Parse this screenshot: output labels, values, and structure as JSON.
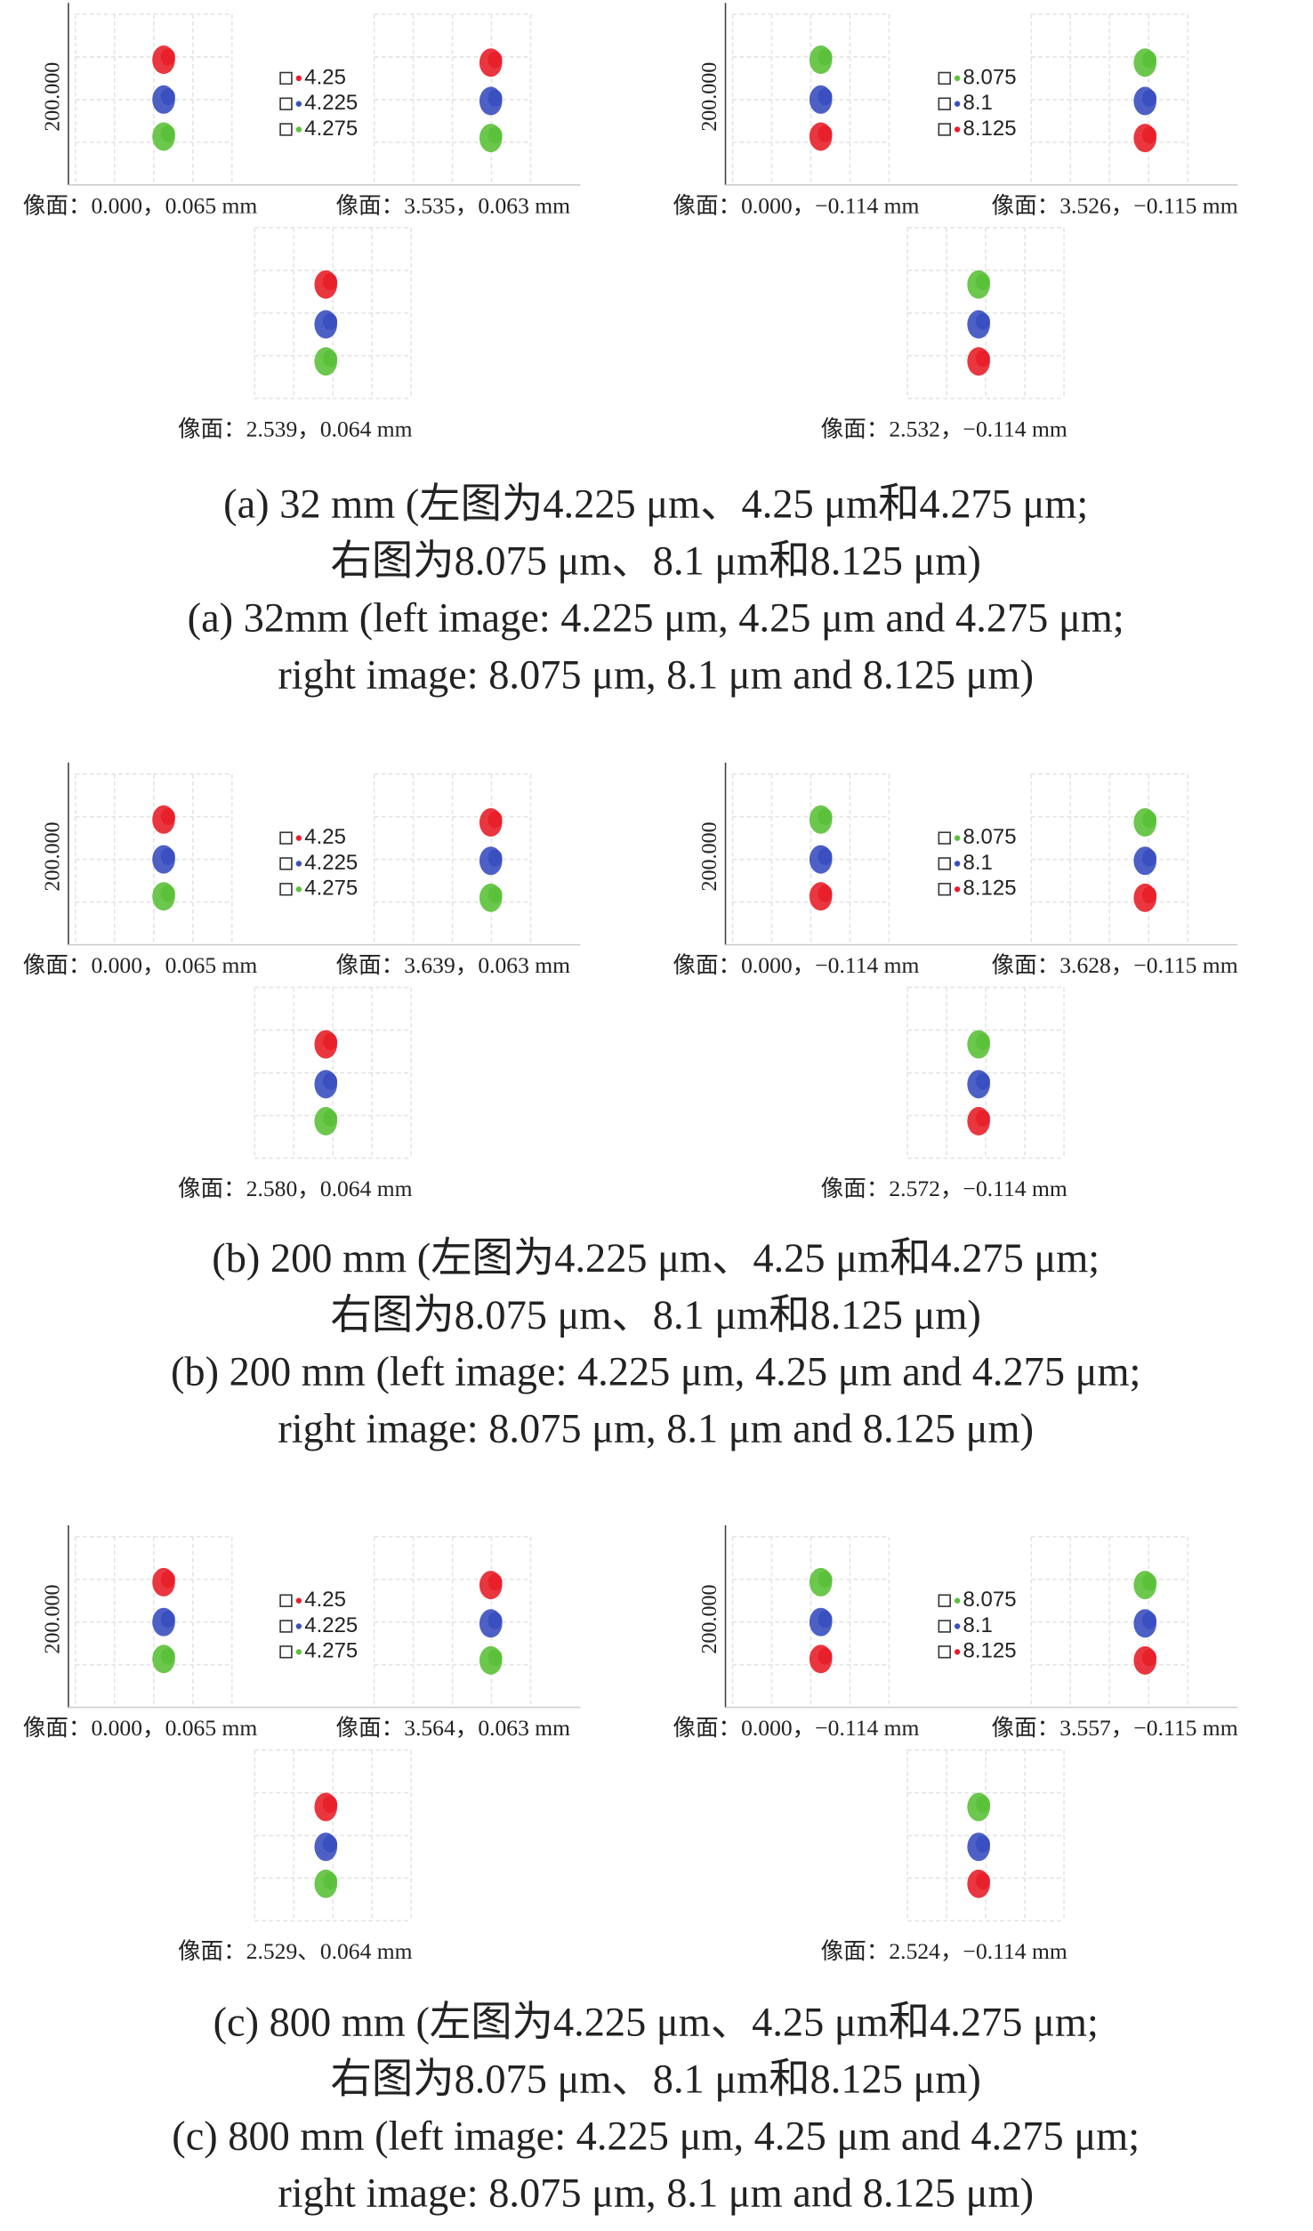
{
  "panels": [
    {
      "left": {
        "axis_label": "200.000",
        "legend": [
          "4.25",
          "4.225",
          "4.275"
        ],
        "fields": [
          "像面：0.000，0.065 mm",
          "像面：3.535，0.063 mm",
          "像面：2.539，0.064 mm"
        ]
      },
      "right": {
        "axis_label": "200.000",
        "legend": [
          "8.075",
          "8.1",
          "8.125"
        ],
        "fields": [
          "像面：0.000，−0.114 mm",
          "像面：3.526，−0.115 mm",
          "像面：2.532，−0.114 mm"
        ]
      },
      "caption_zh": [
        "(a) 32 mm (左图为4.225 μm、4.25 μm和4.275 μm;",
        "右图为8.075 μm、8.1 μm和8.125 μm)"
      ],
      "caption_en": [
        "(a) 32mm (left image: 4.225 μm, 4.25 μm and 4.275 μm;",
        "right image: 8.075 μm, 8.1 μm and 8.125 μm)"
      ]
    },
    {
      "left": {
        "axis_label": "200.000",
        "legend": [
          "4.25",
          "4.225",
          "4.275"
        ],
        "fields": [
          "像面：0.000，0.065 mm",
          "像面：3.639，0.063 mm",
          "像面：2.580，0.064 mm"
        ]
      },
      "right": {
        "axis_label": "200.000",
        "legend": [
          "8.075",
          "8.1",
          "8.125"
        ],
        "fields": [
          "像面：0.000，−0.114 mm",
          "像面：3.628，−0.115 mm",
          "像面：2.572，−0.114 mm"
        ]
      },
      "caption_zh": [
        "(b) 200 mm (左图为4.225 μm、4.25 μm和4.275 μm;",
        "右图为8.075 μm、8.1 μm和8.125 μm)"
      ],
      "caption_en": [
        "(b) 200 mm (left image: 4.225 μm, 4.25 μm and 4.275 μm;",
        "right image: 8.075 μm, 8.1 μm and 8.125 μm)"
      ]
    },
    {
      "left": {
        "axis_label": "200.000",
        "legend": [
          "4.25",
          "4.225",
          "4.275"
        ],
        "fields": [
          "像面：0.000，0.065 mm",
          "像面：3.564，0.063 mm",
          "像面：2.529、0.064 mm"
        ]
      },
      "right": {
        "axis_label": "200.000",
        "legend": [
          "8.075",
          "8.1",
          "8.125"
        ],
        "fields": [
          "像面：0.000，−0.114 mm",
          "像面：3.557，−0.115 mm",
          "像面：2.524，−0.114 mm"
        ]
      },
      "caption_zh": [
        "(c) 800 mm (左图为4.225 μm、4.25 μm和4.275 μm;",
        "右图为8.075 μm、8.1 μm和8.125 μm)"
      ],
      "caption_en": [
        "(c) 800 mm (left image: 4.225 μm, 4.25 μm and 4.275 μm;",
        "right image: 8.075 μm, 8.1 μm and 8.125 μm)"
      ]
    }
  ]
}
